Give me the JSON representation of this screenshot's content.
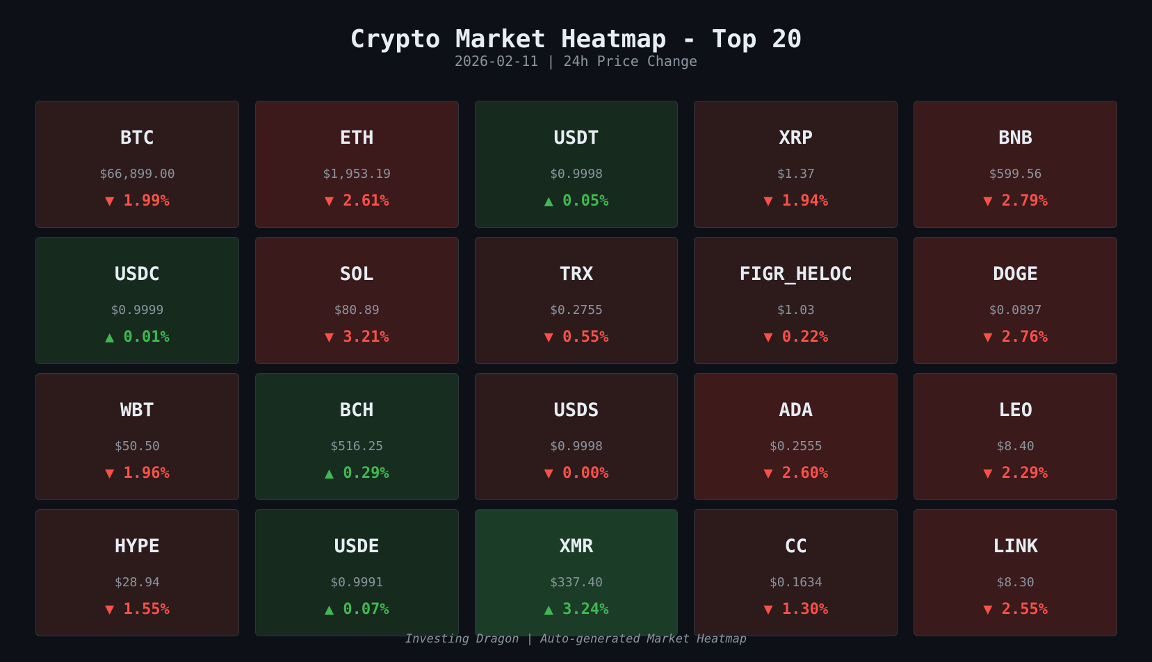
{
  "header": {
    "title": "Crypto Market Heatmap - Top 20",
    "subtitle": "2026-02-11 | 24h Price Change"
  },
  "colors": {
    "up": "#3fb950",
    "down": "#f85149"
  },
  "coins": [
    {
      "ticker": "BTC",
      "price": "$66,899.00",
      "arrow": "▼",
      "change": "1.99%",
      "dir": "down",
      "bg": "#2d1b1c"
    },
    {
      "ticker": "ETH",
      "price": "$1,953.19",
      "arrow": "▼",
      "change": "2.61%",
      "dir": "down",
      "bg": "#3c1a1b"
    },
    {
      "ticker": "USDT",
      "price": "$0.9998",
      "arrow": "▲",
      "change": "0.05%",
      "dir": "up",
      "bg": "#162a1e"
    },
    {
      "ticker": "XRP",
      "price": "$1.37",
      "arrow": "▼",
      "change": "1.94%",
      "dir": "down",
      "bg": "#2d1b1c"
    },
    {
      "ticker": "BNB",
      "price": "$599.56",
      "arrow": "▼",
      "change": "2.79%",
      "dir": "down",
      "bg": "#3a1a1b"
    },
    {
      "ticker": "USDC",
      "price": "$0.9999",
      "arrow": "▲",
      "change": "0.01%",
      "dir": "up",
      "bg": "#162a1e"
    },
    {
      "ticker": "SOL",
      "price": "$80.89",
      "arrow": "▼",
      "change": "3.21%",
      "dir": "down",
      "bg": "#3a1a1b"
    },
    {
      "ticker": "TRX",
      "price": "$0.2755",
      "arrow": "▼",
      "change": "0.55%",
      "dir": "down",
      "bg": "#2d1b1c"
    },
    {
      "ticker": "FIGR_HELOC",
      "price": "$1.03",
      "arrow": "▼",
      "change": "0.22%",
      "dir": "down",
      "bg": "#2d1b1c"
    },
    {
      "ticker": "DOGE",
      "price": "$0.0897",
      "arrow": "▼",
      "change": "2.76%",
      "dir": "down",
      "bg": "#3a1a1b"
    },
    {
      "ticker": "WBT",
      "price": "$50.50",
      "arrow": "▼",
      "change": "1.96%",
      "dir": "down",
      "bg": "#2d1b1c"
    },
    {
      "ticker": "BCH",
      "price": "$516.25",
      "arrow": "▲",
      "change": "0.29%",
      "dir": "up",
      "bg": "#172d20"
    },
    {
      "ticker": "USDS",
      "price": "$0.9998",
      "arrow": "▼",
      "change": "0.00%",
      "dir": "down",
      "bg": "#2d1b1c"
    },
    {
      "ticker": "ADA",
      "price": "$0.2555",
      "arrow": "▼",
      "change": "2.60%",
      "dir": "down",
      "bg": "#3e1a1b"
    },
    {
      "ticker": "LEO",
      "price": "$8.40",
      "arrow": "▼",
      "change": "2.29%",
      "dir": "down",
      "bg": "#3a1a1b"
    },
    {
      "ticker": "HYPE",
      "price": "$28.94",
      "arrow": "▼",
      "change": "1.55%",
      "dir": "down",
      "bg": "#2d1b1c"
    },
    {
      "ticker": "USDE",
      "price": "$0.9991",
      "arrow": "▲",
      "change": "0.07%",
      "dir": "up",
      "bg": "#162a1e"
    },
    {
      "ticker": "XMR",
      "price": "$337.40",
      "arrow": "▲",
      "change": "3.24%",
      "dir": "up",
      "bg": "#1b3d27"
    },
    {
      "ticker": "CC",
      "price": "$0.1634",
      "arrow": "▼",
      "change": "1.30%",
      "dir": "down",
      "bg": "#2d1b1c"
    },
    {
      "ticker": "LINK",
      "price": "$8.30",
      "arrow": "▼",
      "change": "2.55%",
      "dir": "down",
      "bg": "#3a1a1b"
    }
  ],
  "footer": "Investing Dragon | Auto-generated Market Heatmap"
}
